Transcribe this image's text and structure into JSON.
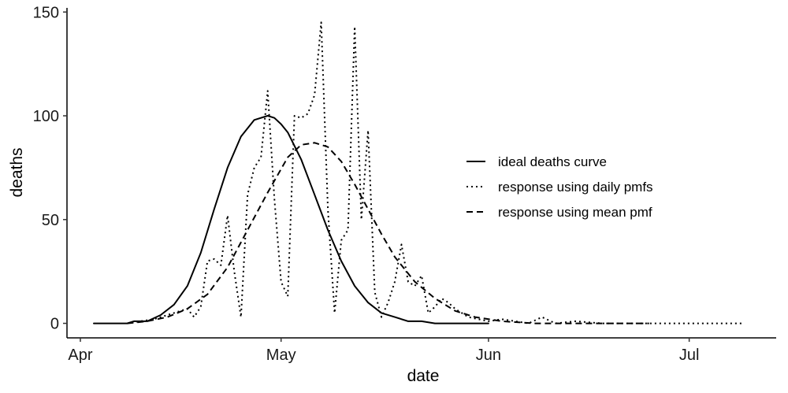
{
  "chart_data": {
    "type": "line",
    "title": "",
    "xlabel": "date",
    "ylabel": "deaths",
    "x_ticks": [
      "Apr",
      "May",
      "Jun",
      "Jul"
    ],
    "y_ticks": [
      0,
      50,
      100,
      150
    ],
    "xlim": [
      "2020-03-30",
      "2020-07-14"
    ],
    "ylim": [
      -7,
      152
    ],
    "grid": false,
    "legend": {
      "position": "right"
    },
    "series": [
      {
        "name": "ideal deaths curve",
        "style": "solid",
        "x": [
          "2020-04-03",
          "2020-04-06",
          "2020-04-08",
          "2020-04-09",
          "2020-04-11",
          "2020-04-13",
          "2020-04-15",
          "2020-04-17",
          "2020-04-19",
          "2020-04-21",
          "2020-04-23",
          "2020-04-25",
          "2020-04-27",
          "2020-04-29",
          "2020-04-30",
          "2020-05-01",
          "2020-05-02",
          "2020-05-04",
          "2020-05-06",
          "2020-05-08",
          "2020-05-10",
          "2020-05-12",
          "2020-05-14",
          "2020-05-16",
          "2020-05-18",
          "2020-05-20",
          "2020-05-22",
          "2020-05-24",
          "2020-05-26",
          "2020-05-28",
          "2020-05-30",
          "2020-06-01"
        ],
        "y": [
          0,
          0,
          0,
          1,
          1,
          4,
          9,
          18,
          34,
          55,
          75,
          90,
          98,
          100,
          99,
          96,
          92,
          79,
          62,
          45,
          30,
          18,
          10,
          5,
          3,
          1,
          1,
          0,
          0,
          0,
          0,
          0
        ]
      },
      {
        "name": "response using daily pmfs",
        "style": "dotted",
        "x": [
          "2020-04-08",
          "2020-04-10",
          "2020-04-12",
          "2020-04-14",
          "2020-04-15",
          "2020-04-16",
          "2020-04-17",
          "2020-04-18",
          "2020-04-19",
          "2020-04-20",
          "2020-04-21",
          "2020-04-22",
          "2020-04-23",
          "2020-04-24",
          "2020-04-25",
          "2020-04-26",
          "2020-04-27",
          "2020-04-28",
          "2020-04-29",
          "2020-04-30",
          "2020-05-01",
          "2020-05-02",
          "2020-05-03",
          "2020-05-04",
          "2020-05-05",
          "2020-05-06",
          "2020-05-07",
          "2020-05-08",
          "2020-05-09",
          "2020-05-10",
          "2020-05-11",
          "2020-05-12",
          "2020-05-13",
          "2020-05-14",
          "2020-05-15",
          "2020-05-16",
          "2020-05-17",
          "2020-05-18",
          "2020-05-19",
          "2020-05-20",
          "2020-05-21",
          "2020-05-22",
          "2020-05-23",
          "2020-05-24",
          "2020-05-25",
          "2020-05-26",
          "2020-05-27",
          "2020-05-29",
          "2020-06-01",
          "2020-06-03",
          "2020-06-05",
          "2020-06-07",
          "2020-06-09",
          "2020-06-11",
          "2020-06-14",
          "2020-06-18",
          "2020-06-25",
          "2020-07-02",
          "2020-07-09"
        ],
        "y": [
          0,
          1,
          2,
          4,
          5,
          6,
          7,
          3,
          8,
          30,
          31,
          28,
          52,
          25,
          3,
          62,
          75,
          80,
          112,
          60,
          20,
          13,
          100,
          99,
          101,
          110,
          145,
          55,
          5,
          40,
          45,
          143,
          50,
          93,
          15,
          3,
          10,
          20,
          38,
          20,
          18,
          23,
          5,
          8,
          12,
          10,
          7,
          3,
          1,
          2,
          1,
          0,
          3,
          0,
          1,
          0,
          0,
          0,
          0
        ]
      },
      {
        "name": "response using mean pmf",
        "style": "dashed",
        "x": [
          "2020-04-08",
          "2020-04-11",
          "2020-04-14",
          "2020-04-17",
          "2020-04-20",
          "2020-04-23",
          "2020-04-26",
          "2020-04-29",
          "2020-05-02",
          "2020-05-04",
          "2020-05-06",
          "2020-05-08",
          "2020-05-10",
          "2020-05-12",
          "2020-05-14",
          "2020-05-16",
          "2020-05-18",
          "2020-05-21",
          "2020-05-24",
          "2020-05-27",
          "2020-05-30",
          "2020-06-03",
          "2020-06-08",
          "2020-06-15",
          "2020-06-25"
        ],
        "y": [
          0,
          1,
          3,
          7,
          14,
          27,
          45,
          63,
          80,
          86,
          87,
          85,
          78,
          67,
          55,
          43,
          32,
          20,
          12,
          6,
          3,
          1,
          0,
          0,
          0
        ]
      }
    ]
  }
}
